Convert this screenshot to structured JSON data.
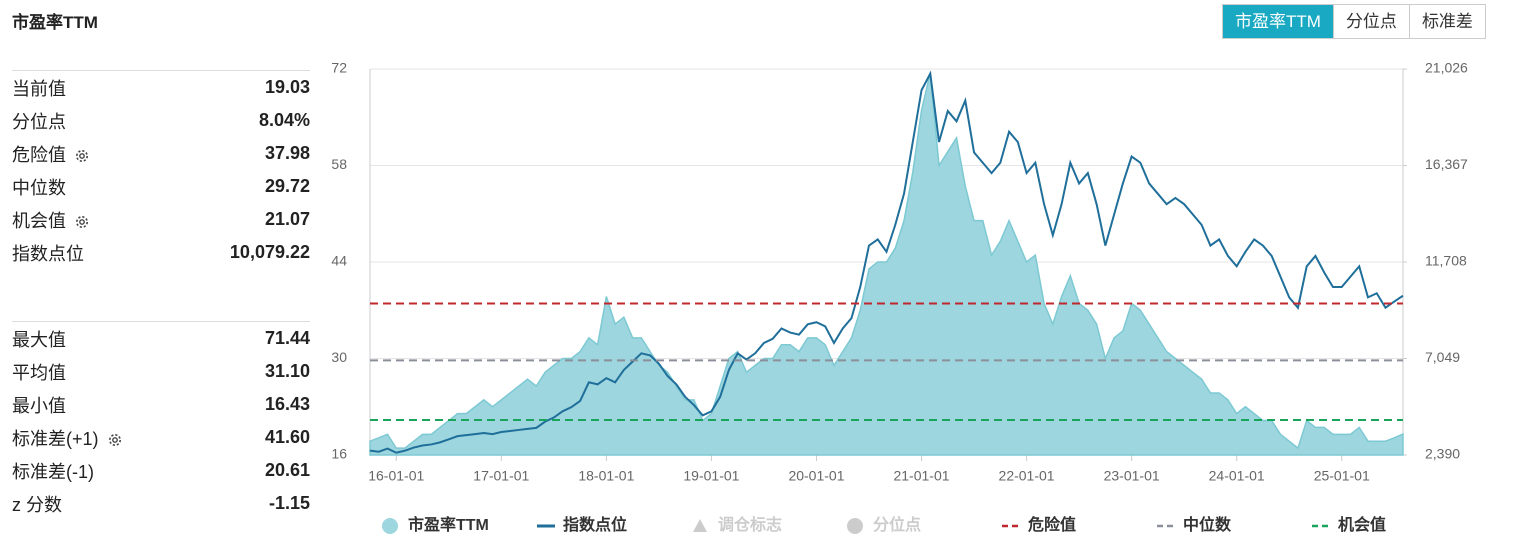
{
  "header": {
    "title": "市盈率TTM",
    "tabs": [
      "市盈率TTM",
      "分位点",
      "标准差"
    ]
  },
  "stats": {
    "group1": [
      [
        "当前值",
        "19.03"
      ],
      [
        "分位点",
        "8.04%"
      ],
      [
        "危险值",
        "37.98"
      ],
      [
        "中位数",
        "29.72"
      ],
      [
        "机会值",
        "21.07"
      ],
      [
        "指数点位",
        "10,079.22"
      ]
    ],
    "group2": [
      [
        "最大值",
        "71.44"
      ],
      [
        "平均值",
        "31.10"
      ],
      [
        "最小值",
        "16.43"
      ],
      [
        "标准差(+1)",
        "41.60"
      ],
      [
        "标准差(-1)",
        "20.61"
      ],
      [
        "z 分数",
        "-1.15"
      ]
    ]
  },
  "chart_data": {
    "type": "area-line",
    "x": [
      "15-10-01",
      "15-11-01",
      "15-12-01",
      "16-01-01",
      "16-02-01",
      "16-03-01",
      "16-04-01",
      "16-05-01",
      "16-06-01",
      "16-07-01",
      "16-08-01",
      "16-09-01",
      "16-10-01",
      "16-11-01",
      "16-12-01",
      "17-01-01",
      "17-02-01",
      "17-03-01",
      "17-04-01",
      "17-05-01",
      "17-06-01",
      "17-07-01",
      "17-08-01",
      "17-09-01",
      "17-10-01",
      "17-11-01",
      "17-12-01",
      "18-01-01",
      "18-02-01",
      "18-03-01",
      "18-04-01",
      "18-05-01",
      "18-06-01",
      "18-07-01",
      "18-08-01",
      "18-09-01",
      "18-10-01",
      "18-11-01",
      "18-12-01",
      "19-01-01",
      "19-02-01",
      "19-03-01",
      "19-04-01",
      "19-05-01",
      "19-06-01",
      "19-07-01",
      "19-08-01",
      "19-09-01",
      "19-10-01",
      "19-11-01",
      "19-12-01",
      "20-01-01",
      "20-02-01",
      "20-03-01",
      "20-04-01",
      "20-05-01",
      "20-06-01",
      "20-07-01",
      "20-08-01",
      "20-09-01",
      "20-10-01",
      "20-11-01",
      "20-12-01",
      "21-01-01",
      "21-02-01",
      "21-03-01",
      "21-04-01",
      "21-05-01",
      "21-06-01",
      "21-07-01",
      "21-08-01",
      "21-09-01",
      "21-10-01",
      "21-11-01",
      "21-12-01",
      "22-01-01",
      "22-02-01",
      "22-03-01",
      "22-04-01",
      "22-05-01",
      "22-06-01",
      "22-07-01",
      "22-08-01",
      "22-09-01",
      "22-10-01",
      "22-11-01",
      "22-12-01",
      "23-01-01",
      "23-02-01",
      "23-03-01",
      "23-04-01",
      "23-05-01",
      "23-06-01",
      "23-07-01",
      "23-08-01",
      "23-09-01",
      "23-10-01",
      "23-11-01",
      "23-12-01",
      "24-01-01",
      "24-02-01",
      "24-03-01",
      "24-04-01",
      "24-05-01",
      "24-06-01",
      "24-07-01",
      "24-08-01",
      "24-09-01",
      "24-10-01",
      "24-11-01",
      "24-12-01",
      "25-01-01",
      "25-02-01",
      "25-03-01",
      "25-04-01",
      "25-05-01",
      "25-06-01",
      "25-07-01",
      "25-08-01"
    ],
    "xlim": [
      "15-10-01",
      "25-08-01"
    ],
    "xticks": [
      "16-01-01",
      "17-01-01",
      "18-01-01",
      "19-01-01",
      "20-01-01",
      "21-01-01",
      "22-01-01",
      "23-01-01",
      "24-01-01",
      "25-01-01"
    ],
    "series": [
      {
        "name": "市盈率TTM",
        "color": "#9dd6de",
        "values": [
          18,
          18.5,
          19,
          17,
          17,
          18,
          19,
          19,
          20,
          21,
          22,
          22,
          23,
          24,
          23,
          24,
          25,
          26,
          27,
          26,
          28,
          29,
          30,
          30,
          31,
          33,
          32,
          39,
          35,
          36,
          33,
          33,
          31,
          29,
          28,
          26,
          24,
          24,
          21,
          22,
          26,
          30,
          31,
          28,
          29,
          30,
          30,
          32,
          32,
          31,
          33,
          33,
          32,
          29,
          31,
          33,
          37,
          43,
          44,
          44,
          46,
          50,
          57,
          66,
          71.44,
          58,
          60,
          62,
          55,
          50,
          50,
          45,
          47,
          50,
          47,
          44,
          45,
          38,
          35,
          39,
          42,
          38,
          37,
          35,
          30,
          33,
          34,
          38,
          37,
          35,
          33,
          31,
          30,
          29,
          28,
          27,
          25,
          25,
          24,
          22,
          23,
          22,
          21,
          21,
          19,
          18,
          17,
          21,
          20,
          20,
          19,
          19,
          19,
          20,
          18,
          18,
          18,
          18.5,
          19.03
        ]
      },
      {
        "name": "指数点位",
        "color": "#1f6f9a",
        "axis": "y2",
        "values": [
          2600,
          2550,
          2700,
          2500,
          2600,
          2750,
          2850,
          2900,
          3000,
          3150,
          3300,
          3350,
          3400,
          3450,
          3400,
          3500,
          3550,
          3600,
          3650,
          3700,
          4000,
          4200,
          4500,
          4700,
          5000,
          5900,
          5800,
          6100,
          5900,
          6500,
          6900,
          7300,
          7200,
          6800,
          6200,
          5800,
          5200,
          4800,
          4300,
          4500,
          5200,
          6500,
          7300,
          7000,
          7300,
          7800,
          8000,
          8500,
          8300,
          8200,
          8700,
          8800,
          8600,
          7800,
          8500,
          9000,
          10500,
          12500,
          12800,
          12200,
          13500,
          15000,
          17500,
          20000,
          20800,
          17500,
          19000,
          18500,
          19500,
          17000,
          16500,
          16000,
          16500,
          18000,
          17500,
          16000,
          16500,
          14500,
          13000,
          14500,
          16500,
          15500,
          16000,
          14500,
          12500,
          14000,
          15500,
          16800,
          16500,
          15500,
          15000,
          14500,
          14800,
          14500,
          14000,
          13500,
          12500,
          12800,
          12000,
          11500,
          12200,
          12800,
          12500,
          12000,
          11000,
          10000,
          9500,
          11500,
          12000,
          11200,
          10500,
          10500,
          11000,
          11500,
          10000,
          10200,
          9500,
          9800,
          10079.22
        ]
      }
    ],
    "reference_lines": [
      {
        "name": "危险值",
        "value": 37.98,
        "color": "#c0282d"
      },
      {
        "name": "中位数",
        "value": 29.72,
        "color": "#8a8f99"
      },
      {
        "name": "机会值",
        "value": 21.07,
        "color": "#1aa35a"
      }
    ],
    "inactive_legend": [
      {
        "name": "调仓标志",
        "color": "#cccccc",
        "marker": "triangle"
      },
      {
        "name": "分位点",
        "color": "#cccccc",
        "marker": "circle"
      }
    ],
    "ylim": [
      16,
      72
    ],
    "yticks": [
      16,
      30,
      44,
      58,
      72
    ],
    "y2lim": [
      2390,
      21026
    ],
    "y2ticks": [
      {
        "value": 2390,
        "label": "2,390"
      },
      {
        "value": 7049,
        "label": "7,049"
      },
      {
        "value": 11708,
        "label": "11,708"
      },
      {
        "value": 16367,
        "label": "16,367"
      },
      {
        "value": 21026,
        "label": "21,026"
      }
    ],
    "grid": true
  }
}
